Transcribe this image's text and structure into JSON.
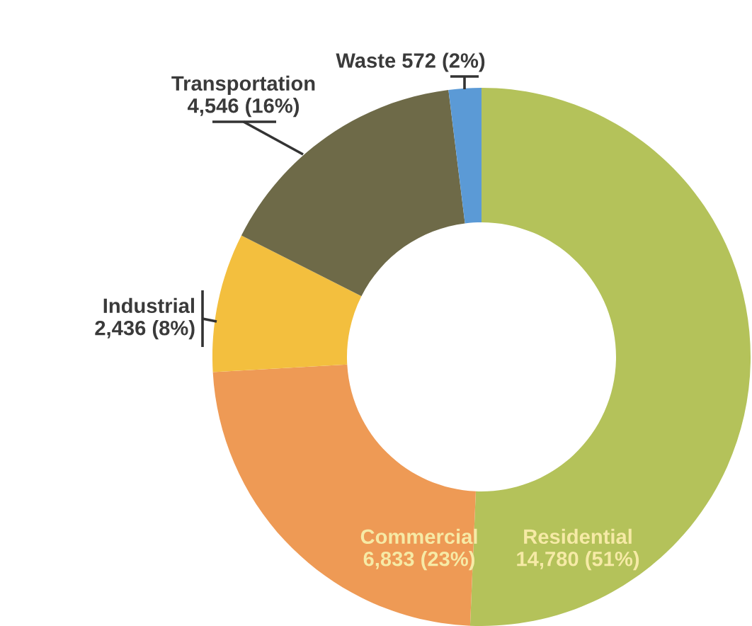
{
  "chart_data": {
    "type": "donut",
    "categories": [
      "Residential",
      "Commercial",
      "Industrial",
      "Transportation",
      "Waste"
    ],
    "values": [
      14780,
      6833,
      2436,
      4546,
      572
    ],
    "value_labels": [
      "14,780 (51%)",
      "6,833 (23%)",
      "2,436 (8%)",
      "4,546 (16%)",
      "572 (2%)"
    ],
    "colors": [
      "#b4c25a",
      "#ee9a55",
      "#f3bf3e",
      "#6e6a48",
      "#5b9ad6"
    ]
  }
}
